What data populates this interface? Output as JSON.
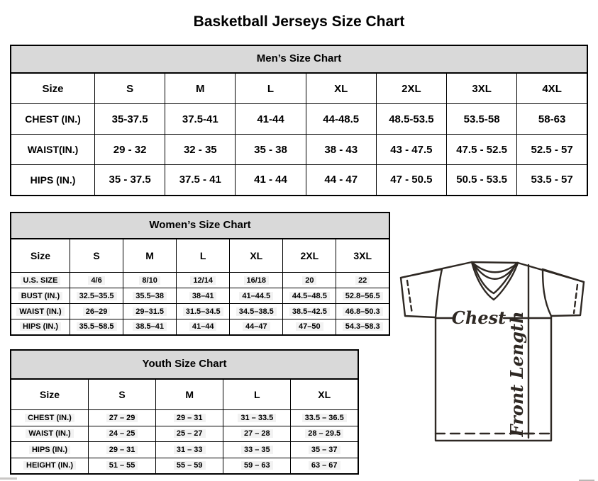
{
  "page_title": "Basketball Jerseys Size Chart",
  "mens_chart": {
    "title": "Men’s Size Chart",
    "columns": [
      "Size",
      "S",
      "M",
      "L",
      "XL",
      "2XL",
      "3XL",
      "4XL"
    ],
    "rows": [
      {
        "label": "CHEST (IN.)",
        "values": [
          "35-37.5",
          "37.5-41",
          "41-44",
          "44-48.5",
          "48.5-53.5",
          "53.5-58",
          "58-63"
        ]
      },
      {
        "label": "WAIST(IN.)",
        "values": [
          "29 - 32",
          "32 - 35",
          "35 - 38",
          "38 - 43",
          "43 - 47.5",
          "47.5 - 52.5",
          "52.5 - 57"
        ]
      },
      {
        "label": "HIPS (IN.)",
        "values": [
          "35 - 37.5",
          "37.5 - 41",
          "41 - 44",
          "44 - 47",
          "47 - 50.5",
          "50.5 - 53.5",
          "53.5 - 57"
        ]
      }
    ]
  },
  "womens_chart": {
    "title": "Women’s Size Chart",
    "columns": [
      "Size",
      "S",
      "M",
      "L",
      "XL",
      "2XL",
      "3XL"
    ],
    "rows": [
      {
        "label": "U.S. SIZE",
        "values": [
          "4/6",
          "8/10",
          "12/14",
          "16/18",
          "20",
          "22"
        ]
      },
      {
        "label": "BUST (IN.)",
        "values": [
          "32.5–35.5",
          "35.5–38",
          "38–41",
          "41–44.5",
          "44.5–48.5",
          "52.8–56.5"
        ]
      },
      {
        "label": "WAIST (IN.)",
        "values": [
          "26–29",
          "29–31.5",
          "31.5–34.5",
          "34.5–38.5",
          "38.5–42.5",
          "46.8–50.3"
        ]
      },
      {
        "label": "HIPS (IN.)",
        "values": [
          "35.5–58.5",
          "38.5–41",
          "41–44",
          "44–47",
          "47–50",
          "54.3–58.3"
        ]
      }
    ]
  },
  "youth_chart": {
    "title": "Youth Size Chart",
    "columns": [
      "Size",
      "S",
      "M",
      "L",
      "XL"
    ],
    "rows": [
      {
        "label": "CHEST (IN.)",
        "values": [
          "27 – 29",
          "29 – 31",
          "31 – 33.5",
          "33.5 – 36.5"
        ]
      },
      {
        "label": "WAIST (IN.)",
        "values": [
          "24 – 25",
          "25 – 27",
          "27 – 28",
          "28 – 29.5"
        ]
      },
      {
        "label": "HIPS (IN.)",
        "values": [
          "29 – 31",
          "31 – 33",
          "33 – 35",
          "35 – 37"
        ]
      },
      {
        "label": "HEIGHT (IN.)",
        "values": [
          "51 – 55",
          "55 – 59",
          "59 – 63",
          "63 – 67"
        ]
      }
    ]
  },
  "diagram": {
    "chest_label": "Chest",
    "front_length_label": "Front Length"
  },
  "colors": {
    "table_header_bg": "#d9d9d9",
    "table_border": "#000000",
    "cell_highlight": "#f2f2f2",
    "diagram_stroke": "#2e2823",
    "scrollbar_gray": "#c9c7c5"
  }
}
